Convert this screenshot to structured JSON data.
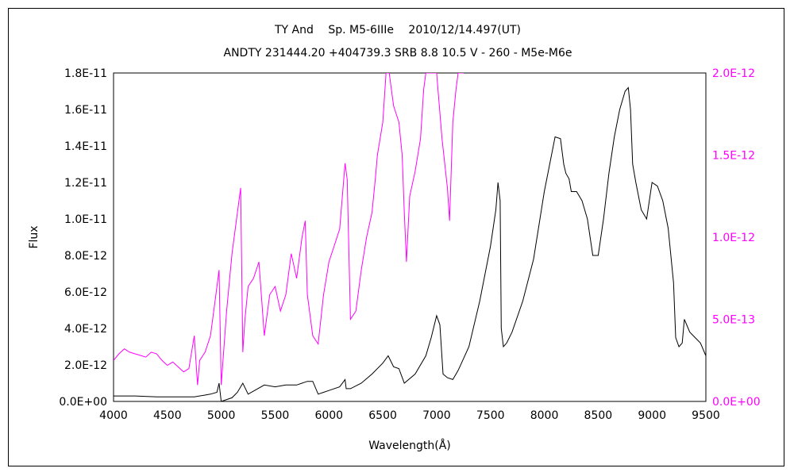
{
  "chart_data": {
    "type": "line",
    "title": "TY And　 Sp. M5-6IIIe　 2010/12/14.497(UT)",
    "subtitle": "ANDTY 231444.20 +404739.3 SRB 8.8 10.5 V - 260 - M5e-M6e",
    "xlabel": "Wavelength(Å)",
    "ylabel": "Flux",
    "xlim": [
      4000,
      9500
    ],
    "ylim": [
      0,
      1.8e-11
    ],
    "y2lim": [
      0,
      2e-12
    ],
    "x_ticks": [
      "4000",
      "4500",
      "5000",
      "5500",
      "6000",
      "6500",
      "7000",
      "7500",
      "8000",
      "8500",
      "9000",
      "9500"
    ],
    "y_ticks": [
      "0.0E+00",
      "2.0E-12",
      "4.0E-12",
      "6.0E-12",
      "8.0E-12",
      "1.0E-11",
      "1.2E-11",
      "1.4E-11",
      "1.6E-11",
      "1.8E-11"
    ],
    "y2_ticks": [
      "0.0E+00",
      "5.0E-13",
      "1.0E-12",
      "1.5E-12",
      "2.0E-12"
    ],
    "grid": false,
    "colors": {
      "primary": "#000000",
      "secondary": "#ff00ff",
      "axis": "#000000",
      "y2_axis": "#ff00ff"
    },
    "series": [
      {
        "axis": "left",
        "color": "#000000",
        "x": [
          4000,
          4200,
          4400,
          4600,
          4750,
          4900,
          4960,
          4980,
          5000,
          5100,
          5150,
          5200,
          5250,
          5400,
          5500,
          5600,
          5700,
          5800,
          5850,
          5900,
          5950,
          6000,
          6100,
          6150,
          6160,
          6200,
          6300,
          6400,
          6500,
          6550,
          6600,
          6650,
          6700,
          6800,
          6900,
          6950,
          7000,
          7030,
          7060,
          7100,
          7150,
          7200,
          7300,
          7400,
          7500,
          7550,
          7570,
          7590,
          7600,
          7620,
          7650,
          7700,
          7800,
          7900,
          8000,
          8100,
          8150,
          8180,
          8200,
          8230,
          8250,
          8300,
          8350,
          8400,
          8450,
          8500,
          8550,
          8600,
          8650,
          8700,
          8750,
          8780,
          8800,
          8820,
          8850,
          8900,
          8950,
          9000,
          9050,
          9100,
          9150,
          9200,
          9220,
          9250,
          9280,
          9300,
          9350,
          9400,
          9450,
          9500
        ],
        "y": [
          3e-13,
          3e-13,
          2.5e-13,
          2.5e-13,
          2.5e-13,
          4e-13,
          5e-13,
          1e-12,
          0.0,
          2e-13,
          5e-13,
          1e-12,
          4e-13,
          9e-13,
          8e-13,
          9e-13,
          9e-13,
          1.1e-12,
          1.1e-12,
          4e-13,
          5e-13,
          6e-13,
          8e-13,
          1.2e-12,
          7e-13,
          7e-13,
          1e-12,
          1.5e-12,
          2.1e-12,
          2.5e-12,
          1.9e-12,
          1.8e-12,
          1e-12,
          1.5e-12,
          2.5e-12,
          3.5e-12,
          4.7e-12,
          4.2e-12,
          1.5e-12,
          1.3e-12,
          1.2e-12,
          1.7e-12,
          3e-12,
          5.5e-12,
          8.5e-12,
          1.05e-11,
          1.2e-11,
          1.1e-11,
          4e-12,
          3e-12,
          3.2e-12,
          3.8e-12,
          5.5e-12,
          7.8e-12,
          1.15e-11,
          1.45e-11,
          1.44e-11,
          1.3e-11,
          1.25e-11,
          1.22e-11,
          1.15e-11,
          1.15e-11,
          1.1e-11,
          1e-11,
          8e-12,
          8e-12,
          1e-11,
          1.25e-11,
          1.45e-11,
          1.6e-11,
          1.7e-11,
          1.72e-11,
          1.6e-11,
          1.3e-11,
          1.2e-11,
          1.05e-11,
          1e-11,
          1.2e-11,
          1.18e-11,
          1.1e-11,
          9.5e-12,
          6.5e-12,
          3.5e-12,
          3e-12,
          3.2e-12,
          4.5e-12,
          3.8e-12,
          3.5e-12,
          3.2e-12,
          2.5e-12
        ]
      },
      {
        "axis": "right",
        "color": "#ff00ff",
        "x": [
          4000,
          4050,
          4100,
          4150,
          4200,
          4250,
          4300,
          4350,
          4400,
          4450,
          4500,
          4550,
          4600,
          4650,
          4700,
          4750,
          4780,
          4800,
          4850,
          4900,
          4950,
          4980,
          5000,
          5050,
          5100,
          5150,
          5180,
          5200,
          5220,
          5250,
          5300,
          5350,
          5400,
          5450,
          5500,
          5550,
          5600,
          5650,
          5700,
          5750,
          5780,
          5800,
          5850,
          5900,
          5950,
          6000,
          6050,
          6100,
          6150,
          6170,
          6200,
          6250,
          6300,
          6350,
          6400,
          6430,
          6450,
          6500,
          6530,
          6560,
          6600,
          6650,
          6680,
          6700,
          6720,
          6750,
          6800,
          6850,
          6880,
          6900,
          6920,
          6950,
          7000,
          7050,
          7100,
          7120,
          7150,
          7180,
          7200,
          7230,
          7250
        ],
        "y": [
          2.5e-13,
          2.9e-13,
          3.2e-13,
          3e-13,
          2.9e-13,
          2.8e-13,
          2.7e-13,
          3e-13,
          2.9e-13,
          2.5e-13,
          2.2e-13,
          2.4e-13,
          2.1e-13,
          1.8e-13,
          2e-13,
          4e-13,
          1e-13,
          2.5e-13,
          3e-13,
          4e-13,
          6.5e-13,
          8e-13,
          1e-13,
          5.5e-13,
          9e-13,
          1.15e-12,
          1.3e-12,
          3e-13,
          5e-13,
          7e-13,
          7.5e-13,
          8.5e-13,
          4e-13,
          6.5e-13,
          7e-13,
          5.5e-13,
          6.5e-13,
          9e-13,
          7.5e-13,
          1e-12,
          1.1e-12,
          6.5e-13,
          4e-13,
          3.5e-13,
          6.5e-13,
          8.5e-13,
          9.5e-13,
          1.05e-12,
          1.45e-12,
          1.35e-12,
          5e-13,
          5.5e-13,
          8e-13,
          1e-12,
          1.15e-12,
          1.35e-12,
          1.5e-12,
          1.7e-12,
          2e-12,
          2e-12,
          1.8e-12,
          1.7e-12,
          1.5e-12,
          1.15e-12,
          8.5e-13,
          1.25e-12,
          1.4e-12,
          1.6e-12,
          1.9e-12,
          2e-12,
          2e-12,
          2e-12,
          2e-12,
          1.6e-12,
          1.3e-12,
          1.1e-12,
          1.7e-12,
          1.9e-12,
          2e-12,
          2e-12,
          2e-12
        ]
      }
    ]
  }
}
